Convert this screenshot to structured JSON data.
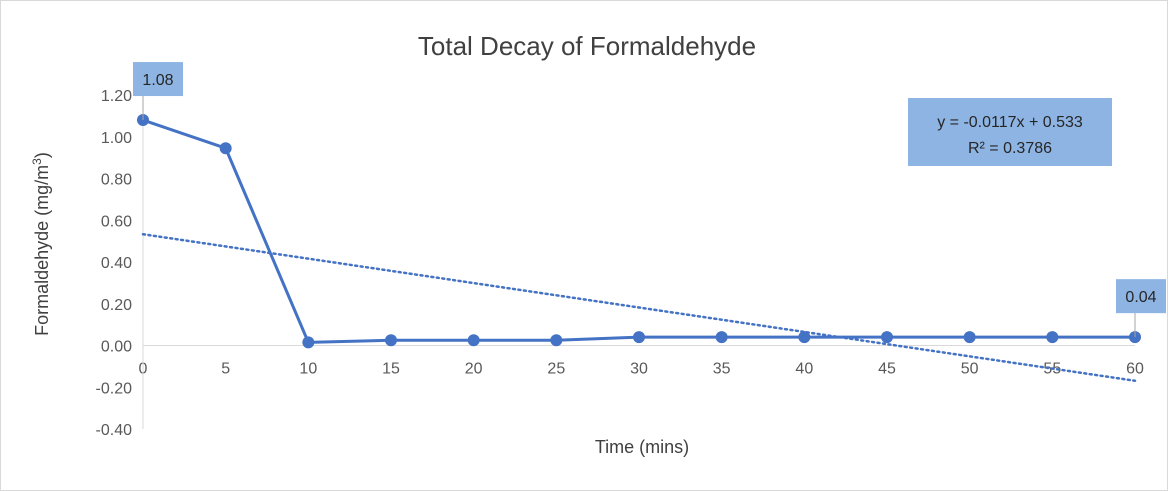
{
  "chart_data": {
    "type": "line",
    "title": "Total Decay of Formaldehyde",
    "xlabel": "Time (mins)",
    "ylabel": "Formaldehyde (mg/m",
    "ylabel_sup": "3",
    "ylabel_end": ")",
    "x": [
      0,
      5,
      10,
      15,
      20,
      25,
      30,
      35,
      40,
      45,
      50,
      55,
      60
    ],
    "x_ticks": [
      "0",
      "5",
      "10",
      "15",
      "20",
      "25",
      "30",
      "35",
      "40",
      "45",
      "50",
      "55",
      "60"
    ],
    "y_ticks": [
      "1.20",
      "1.00",
      "0.80",
      "0.60",
      "0.40",
      "0.20",
      "0.00",
      "-0.20",
      "-0.40"
    ],
    "y_tick_values": [
      1.2,
      1.0,
      0.8,
      0.6,
      0.4,
      0.2,
      0.0,
      -0.2,
      -0.4
    ],
    "ylim": [
      -0.4,
      1.2
    ],
    "xlim": [
      0,
      60
    ],
    "grid": false,
    "series": [
      {
        "values": [
          1.08,
          0.945,
          0.015,
          0.025,
          0.025,
          0.025,
          0.04,
          0.04,
          0.04,
          0.04,
          0.04,
          0.04,
          0.04
        ],
        "color": "#4472c4"
      }
    ],
    "data_labels": [
      {
        "text": "1.08",
        "x": 0,
        "y": 1.08
      },
      {
        "text": "0.04",
        "x": 60,
        "y": 0.04
      }
    ],
    "trendline": {
      "type": "linear",
      "slope": -0.0117,
      "intercept": 0.533,
      "color": "#4472c4",
      "equation": "y = -0.0117x + 0.533",
      "r_squared": "R² = 0.3786"
    },
    "callout_color": "#8eb4e3",
    "axis_color": "#d9d9d9"
  }
}
